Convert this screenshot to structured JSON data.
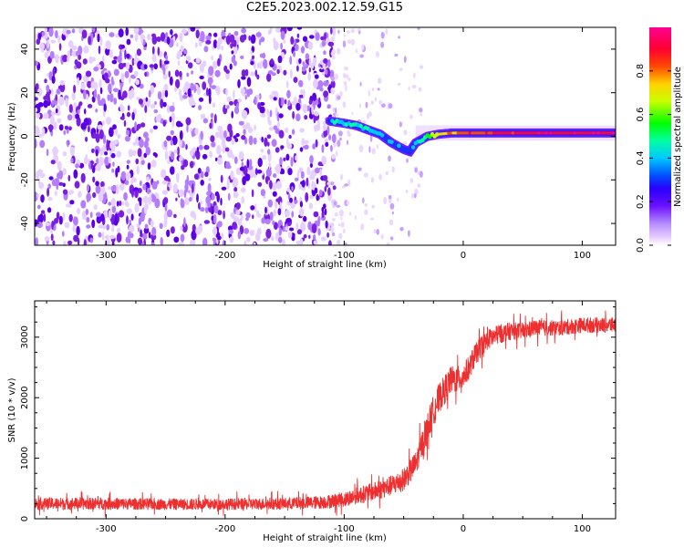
{
  "title": "C2E5.2023.002.12.59.G15",
  "colors": {
    "spectrogram_noise": "#7a1fe0",
    "snr_line": "#ee2f2f",
    "colormap": [
      "#ffffff",
      "#e6c8ff",
      "#c89bff",
      "#8a2cff",
      "#5a00ff",
      "#1a33ff",
      "#00c8ff",
      "#00ffa0",
      "#00ff00",
      "#c8ff00",
      "#ffd200",
      "#ff4a00",
      "#ff0040",
      "#ff0090"
    ]
  },
  "chart_data": [
    {
      "type": "heatmap",
      "xlabel": "Height of straight line (km)",
      "ylabel": "Frequency (Hz)",
      "xlim": [
        -360,
        128
      ],
      "ylim": [
        -50,
        50
      ],
      "xticks": [
        -300,
        -200,
        -100,
        0,
        100
      ],
      "xtick_labels": [
        "-300",
        "-200",
        "-100",
        "0",
        "100"
      ],
      "yticks": [
        -40,
        -20,
        0,
        20,
        40
      ],
      "ytick_labels": [
        "-40",
        "-20",
        "0",
        "20",
        "40"
      ],
      "colorbar": {
        "label": "Normalized spectral amplitude",
        "ticks": [
          0.0,
          0.2,
          0.4,
          0.6,
          0.8
        ],
        "tick_labels": [
          "0.0",
          "0.2",
          "0.4",
          "0.6",
          "0.8"
        ],
        "range": [
          0,
          1
        ]
      },
      "signal_trace": {
        "x": [
          -112,
          -100,
          -90,
          -80,
          -70,
          -60,
          -50,
          -45,
          -40,
          -30,
          -20,
          -10,
          0,
          20,
          50,
          128
        ],
        "frequency": [
          7,
          6,
          5,
          3,
          1,
          -3,
          -6,
          -7,
          -3,
          0,
          1,
          1.5,
          1.5,
          1.5,
          1.5,
          1.5
        ],
        "amplitude": [
          0.35,
          0.4,
          0.4,
          0.4,
          0.3,
          0.3,
          0.25,
          0.25,
          0.3,
          0.5,
          0.7,
          0.75,
          0.75,
          0.8,
          0.85,
          0.85
        ]
      }
    },
    {
      "type": "line",
      "xlabel": "Height of straight line (km)",
      "ylabel": "SNR (10 * v/v)",
      "xlim": [
        -360,
        128
      ],
      "ylim": [
        0,
        3600
      ],
      "xticks": [
        -300,
        -200,
        -100,
        0,
        100
      ],
      "xtick_labels": [
        "-300",
        "-200",
        "-100",
        "0",
        "100"
      ],
      "yticks": [
        0,
        1000,
        2000,
        3000
      ],
      "ytick_labels": [
        "0",
        "1000",
        "2000",
        "3000"
      ],
      "x": [
        -360,
        -300,
        -250,
        -200,
        -150,
        -120,
        -100,
        -90,
        -80,
        -70,
        -60,
        -50,
        -40,
        -35,
        -30,
        -25,
        -20,
        -15,
        -10,
        -5,
        0,
        5,
        10,
        15,
        20,
        30,
        40,
        50,
        60,
        80,
        100,
        128
      ],
      "y": [
        250,
        250,
        240,
        240,
        250,
        270,
        320,
        380,
        420,
        480,
        550,
        650,
        900,
        1200,
        1500,
        1800,
        2000,
        2150,
        2300,
        2300,
        2350,
        2500,
        2700,
        2850,
        2950,
        3050,
        3100,
        3100,
        3150,
        3150,
        3200,
        3200
      ],
      "noise_amplitude": [
        200,
        200,
        190,
        190,
        200,
        220,
        250,
        280,
        300,
        320,
        340,
        380,
        420,
        450,
        500,
        500,
        500,
        480,
        460,
        440,
        420,
        400,
        380,
        360,
        340,
        320,
        300,
        280,
        280,
        260,
        260,
        260
      ]
    }
  ]
}
